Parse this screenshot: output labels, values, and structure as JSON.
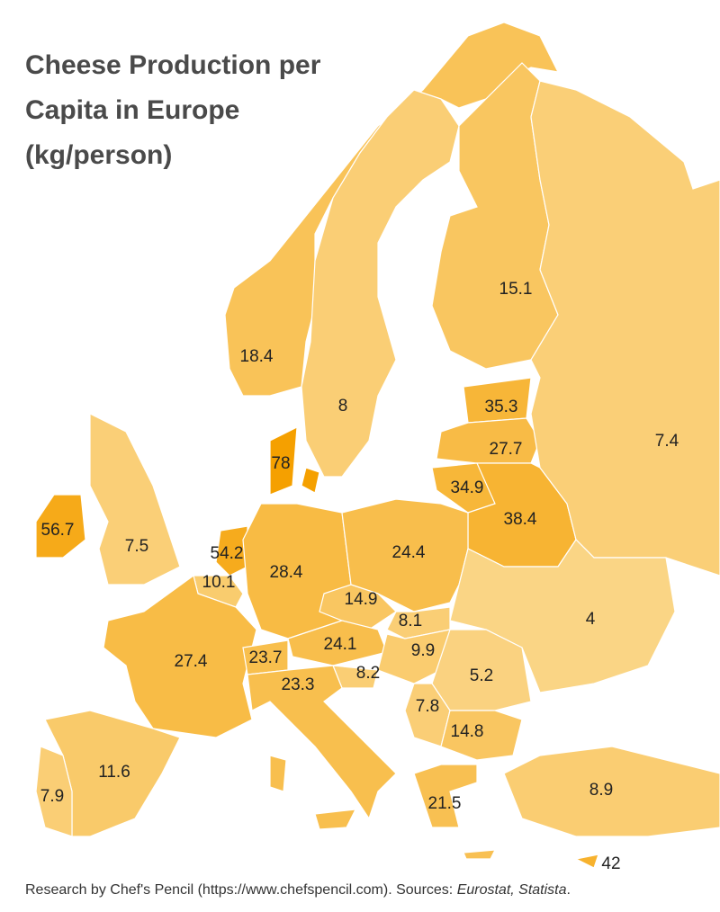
{
  "title": [
    "Cheese Production per",
    "Capita in Europe",
    "(kg/person)"
  ],
  "regions": [
    {
      "value": 18.4
    },
    {
      "value": 8
    },
    {
      "value": 15.1
    },
    {
      "value": 35.3
    },
    {
      "value": 27.7
    },
    {
      "value": 34.9
    },
    {
      "value": 38.4
    },
    {
      "value": 7.4
    },
    {
      "value": 78
    },
    {
      "value": 56.7
    },
    {
      "value": 7.5
    },
    {
      "value": 54.2
    },
    {
      "value": 10.1
    },
    {
      "value": 28.4
    },
    {
      "value": 24.4
    },
    {
      "value": 14.9
    },
    {
      "value": 8.1
    },
    {
      "value": 4
    },
    {
      "value": 27.4
    },
    {
      "value": 23.7
    },
    {
      "value": 24.1
    },
    {
      "value": 9.9
    },
    {
      "value": 5.2
    },
    {
      "value": 8.2
    },
    {
      "value": 23.3
    },
    {
      "value": 7.8
    },
    {
      "value": 14.8
    },
    {
      "value": 11.6
    },
    {
      "value": 7.9
    },
    {
      "value": 21.5
    },
    {
      "value": 8.9
    },
    {
      "value": 42
    }
  ],
  "footer": {
    "text": "Research by Chef's Pencil (https://www.chefspencil.com). Sources: ",
    "sources": "Eurostat, Statista",
    "end": "."
  }
}
